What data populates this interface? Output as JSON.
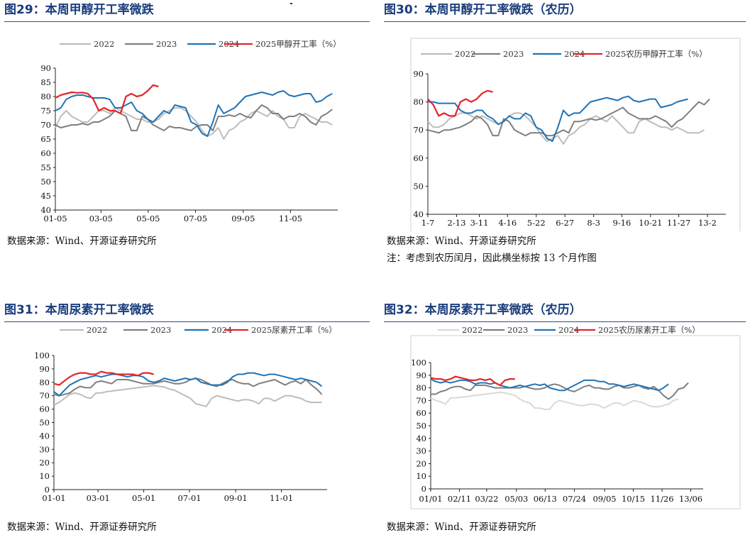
{
  "panels": [
    {
      "title": "图29：本周甲醇开工率微跌",
      "source": "数据来源：Wind、开源证券研究所",
      "note": ""
    },
    {
      "title": "图30：本周甲醇开工率微跌（农历）",
      "source": "数据来源：Wind、开源证券研究所",
      "note": "注：考虑到农历闰月，因此横坐标按 13 个月作图"
    },
    {
      "title": "图31：本周尿素开工率微跌",
      "source": "数据来源：Wind、开源证券研究所",
      "note": ""
    },
    {
      "title": "图32：本周尿素开工率微跌（农历）",
      "source": "数据来源：Wind、开源证券研究所",
      "note": ""
    }
  ],
  "chart_data": [
    {
      "type": "line",
      "title": "",
      "ylim": [
        40,
        90
      ],
      "yticks": [
        40,
        45,
        50,
        55,
        60,
        65,
        70,
        75,
        80,
        85,
        90
      ],
      "xlim": [
        0,
        52
      ],
      "xticks": [
        {
          "label": "01-05",
          "x": 0
        },
        {
          "label": "03-05",
          "x": 8.4
        },
        {
          "label": "05-05",
          "x": 17.1
        },
        {
          "label": "07-05",
          "x": 25.8
        },
        {
          "label": "09-05",
          "x": 34.6
        },
        {
          "label": "11-05",
          "x": 43.3
        }
      ],
      "grid": false,
      "legend": "top",
      "series": [
        {
          "name": "2022",
          "color": "#bdbdbd",
          "x_start": 0,
          "values": [
            69,
            73,
            75,
            73,
            72,
            71,
            71,
            73,
            75,
            75,
            74,
            76,
            75,
            74,
            73,
            72,
            72,
            71,
            71,
            72,
            74,
            75,
            76,
            76,
            75,
            73,
            71,
            68,
            66,
            67,
            69,
            65,
            68,
            69,
            71,
            72,
            74,
            75,
            74,
            73,
            75,
            73,
            72,
            69,
            69,
            73,
            74,
            73,
            72,
            71,
            71,
            70
          ]
        },
        {
          "name": "2023",
          "color": "#7f7f7f",
          "x_start": 0,
          "values": [
            70,
            69,
            69.5,
            70,
            70,
            70.5,
            70,
            71,
            71,
            72,
            73,
            75,
            74,
            73,
            68,
            68,
            73,
            72,
            70,
            69,
            68,
            69.5,
            69,
            69,
            68.5,
            68,
            69.5,
            70,
            70,
            68,
            73,
            73,
            73.5,
            73,
            74,
            73,
            72.5,
            75,
            77,
            76,
            74,
            74,
            72,
            73,
            73,
            74,
            73,
            71,
            70,
            73,
            74,
            75.5
          ]
        },
        {
          "name": "2024",
          "color": "#1f73b7",
          "x_start": 0,
          "values": [
            75,
            76,
            79,
            80,
            80.5,
            80.5,
            80,
            79.5,
            79.5,
            79.5,
            79,
            76,
            76,
            77,
            78,
            75,
            74,
            72,
            71,
            73,
            75,
            74,
            77,
            76.5,
            76,
            71,
            70,
            67,
            66,
            71,
            77,
            74,
            75,
            76,
            78,
            80,
            80.5,
            81,
            81.5,
            81,
            80.5,
            81.5,
            82,
            80.5,
            80,
            80.5,
            81,
            81,
            78,
            78.5,
            80,
            81
          ]
        },
        {
          "name": "2025甲醇开工率（%）",
          "color": "#e3262b",
          "x_start": 0,
          "values": [
            79.5,
            80.5,
            81,
            81.5,
            81.3,
            81.4,
            81,
            79,
            75,
            76,
            75,
            75,
            74,
            80,
            81,
            80,
            80.5,
            82,
            84,
            83.5
          ]
        }
      ]
    },
    {
      "type": "line",
      "title": "",
      "ylim": [
        40,
        90
      ],
      "yticks": [
        40,
        50,
        60,
        70,
        80,
        90
      ],
      "xlim": [
        0,
        55
      ],
      "xticks": [
        {
          "label": "1-7",
          "x": 0
        },
        {
          "label": "2-13",
          "x": 5.3
        },
        {
          "label": "3-11",
          "x": 9.5
        },
        {
          "label": "4-16",
          "x": 14.7
        },
        {
          "label": "5-22",
          "x": 20
        },
        {
          "label": "6-27",
          "x": 25.3
        },
        {
          "label": "8-3",
          "x": 30.6
        },
        {
          "label": "9-16",
          "x": 35.8
        },
        {
          "label": "10-21",
          "x": 41.1
        },
        {
          "label": "11-27",
          "x": 46.3
        },
        {
          "label": "13-2",
          "x": 51.6
        }
      ],
      "grid": false,
      "legend": "top",
      "series": [
        {
          "name": "2022",
          "color": "#bdbdbd",
          "x_start": 0,
          "values": [
            73,
            71,
            71,
            72,
            74,
            75,
            76,
            76,
            75,
            74,
            75,
            74,
            73,
            72,
            73,
            75,
            76,
            76,
            75,
            73,
            71,
            68,
            66,
            67,
            68,
            65,
            68,
            69,
            71,
            72,
            74,
            75,
            74,
            73,
            75,
            73,
            71,
            69,
            69,
            73,
            74,
            73,
            72,
            71,
            71,
            70,
            71,
            70,
            69,
            69,
            69,
            70
          ]
        },
        {
          "name": "2023",
          "color": "#7f7f7f",
          "x_start": 0,
          "values": [
            70,
            69.5,
            69,
            70,
            70,
            70.5,
            71,
            72,
            73,
            75,
            74,
            72,
            68,
            68,
            74,
            73,
            70,
            69,
            68,
            69,
            69,
            69,
            68,
            68,
            69,
            70,
            69,
            73,
            73,
            73.5,
            74,
            73.5,
            74,
            75,
            76,
            77,
            78,
            76,
            75,
            74,
            74,
            74,
            75,
            74,
            73,
            71,
            73,
            74,
            76,
            78,
            80,
            79,
            81
          ]
        },
        {
          "name": "2024",
          "color": "#1f73b7",
          "x_start": 0,
          "values": [
            80,
            80,
            79.5,
            79.5,
            79.5,
            79.5,
            77,
            76,
            76,
            77,
            77,
            75,
            74,
            72,
            73,
            75,
            74,
            74,
            76,
            75,
            71,
            70,
            67,
            66,
            71,
            77,
            75,
            76,
            76,
            78,
            80,
            80.5,
            81,
            81.5,
            81,
            80.5,
            81.5,
            82,
            80.5,
            80,
            80.5,
            81,
            81,
            78,
            78.5,
            79,
            80,
            80.5,
            81
          ]
        },
        {
          "name": "2025农历甲醇开工率（%）",
          "color": "#e3262b",
          "x_start": 0,
          "values": [
            81,
            79,
            75,
            76,
            75,
            75,
            80,
            81,
            80,
            81,
            83,
            84,
            83.5
          ]
        }
      ]
    },
    {
      "type": "line",
      "title": "",
      "ylim": [
        0,
        100
      ],
      "yticks": [
        0,
        10,
        20,
        30,
        40,
        50,
        60,
        70,
        80,
        90,
        100
      ],
      "xlim": [
        0,
        52
      ],
      "xticks": [
        {
          "label": "01-01",
          "x": 0
        },
        {
          "label": "03-01",
          "x": 8.4
        },
        {
          "label": "05-01",
          "x": 17.1
        },
        {
          "label": "07-01",
          "x": 25.8
        },
        {
          "label": "09-01",
          "x": 34.6
        },
        {
          "label": "11-01",
          "x": 43.3
        }
      ],
      "grid": false,
      "legend": "top",
      "series": [
        {
          "name": "2022",
          "color": "#bdbdbd",
          "x_start": 0,
          "values": [
            63,
            65,
            68,
            71,
            72,
            71,
            69,
            68,
            72,
            72,
            73,
            73.5,
            74,
            74.5,
            75,
            75.5,
            76,
            76.5,
            77,
            77.5,
            77,
            76.5,
            75,
            74,
            72,
            70,
            68,
            64,
            63,
            62,
            68,
            70,
            69,
            68,
            67,
            66,
            67,
            67,
            66,
            64,
            68,
            68,
            66,
            68,
            70,
            70,
            69,
            68,
            66,
            65,
            65,
            65
          ]
        },
        {
          "name": "2023",
          "color": "#7f7f7f",
          "x_start": 0,
          "values": [
            71,
            70,
            71,
            72,
            75,
            77,
            76,
            76,
            80,
            81,
            80,
            79,
            82,
            82,
            82,
            81,
            80,
            79,
            79,
            79,
            80,
            81,
            80,
            79,
            79,
            80,
            82,
            83,
            82,
            80,
            78,
            77,
            79,
            81,
            82,
            80,
            79,
            79,
            77,
            79,
            80,
            81,
            82,
            80,
            78,
            80,
            81,
            79,
            82,
            78,
            75,
            71
          ]
        },
        {
          "name": "2024",
          "color": "#1f73b7",
          "x_start": 0,
          "values": [
            73,
            70,
            74,
            78,
            80,
            82,
            83,
            84,
            85,
            84,
            85,
            86,
            86,
            85,
            84,
            85,
            85,
            84,
            81,
            80,
            81,
            83,
            82,
            81,
            82,
            83,
            82,
            83,
            80,
            79,
            78,
            78,
            78,
            80,
            84,
            86,
            86,
            87,
            87,
            86,
            85,
            86,
            86,
            85,
            84,
            83,
            82,
            83,
            82,
            81,
            80,
            77
          ]
        },
        {
          "name": "2025尿素开工率（%）",
          "color": "#e3262b",
          "x_start": 0,
          "values": [
            79,
            78,
            81,
            84,
            86,
            87,
            87,
            86,
            86,
            88,
            87,
            87,
            86,
            86,
            86,
            86,
            85,
            87,
            87,
            86
          ]
        }
      ]
    },
    {
      "type": "line",
      "title": "",
      "ylim": [
        0,
        100
      ],
      "yticks": [
        0,
        10,
        20,
        30,
        40,
        50,
        60,
        70,
        80,
        90,
        100
      ],
      "xlim": [
        0,
        55
      ],
      "xticks": [
        {
          "label": "01/01",
          "x": 0
        },
        {
          "label": "02/11",
          "x": 5.8
        },
        {
          "label": "03/22",
          "x": 11.3
        },
        {
          "label": "05/03",
          "x": 17.3
        },
        {
          "label": "06/13",
          "x": 23.1
        },
        {
          "label": "07/24",
          "x": 29
        },
        {
          "label": "09/05",
          "x": 35.1
        },
        {
          "label": "10/15",
          "x": 40.9
        },
        {
          "label": "11/26",
          "x": 46.7
        },
        {
          "label": "13/06",
          "x": 52.5
        }
      ],
      "grid": false,
      "legend": "top",
      "series": [
        {
          "name": "2022",
          "color": "#d9d9d9",
          "x_start": 0,
          "values": [
            72,
            70,
            69,
            67,
            72,
            72,
            72.5,
            73,
            73.5,
            74,
            74.5,
            75,
            75.5,
            76,
            76.5,
            76,
            75,
            74,
            71,
            69,
            68,
            64,
            64,
            63,
            63,
            68,
            70,
            69,
            68,
            67,
            66,
            66,
            67,
            67,
            66,
            64,
            66,
            68,
            68,
            66,
            68,
            70,
            69,
            68,
            66,
            65,
            65,
            66,
            67,
            70,
            71
          ]
        },
        {
          "name": "2023",
          "color": "#7f7f7f",
          "x_start": 0,
          "values": [
            75,
            75,
            77,
            78,
            80,
            81,
            81,
            79,
            78,
            82,
            82,
            82,
            81,
            80,
            80,
            80,
            80,
            80,
            80,
            81,
            80,
            79,
            79,
            80,
            82,
            83,
            82,
            80,
            78,
            77,
            79,
            81,
            82,
            80,
            80,
            79,
            79,
            81,
            82,
            80,
            80,
            81,
            82,
            80,
            79,
            81,
            78,
            74,
            71,
            74,
            79,
            80,
            84
          ]
        },
        {
          "name": "2024",
          "color": "#1f73b7",
          "x_start": 0,
          "values": [
            87,
            85,
            84,
            85,
            84,
            85,
            86,
            86,
            85,
            83,
            84,
            84,
            83,
            84,
            82,
            81,
            80,
            81,
            82,
            81,
            82,
            83,
            82,
            83,
            80,
            79,
            78,
            78,
            80,
            82,
            84,
            86,
            86,
            86,
            85,
            85,
            83,
            83,
            82,
            81,
            82,
            83,
            82,
            81,
            80,
            79,
            78,
            80,
            83
          ]
        },
        {
          "name": "2025农历尿素开工率（%）",
          "color": "#e3262b",
          "x_start": 0,
          "values": [
            88,
            87,
            87,
            86,
            87,
            89,
            88,
            87,
            86,
            86,
            87,
            86,
            87,
            84,
            82,
            86,
            87,
            87
          ]
        }
      ]
    }
  ]
}
